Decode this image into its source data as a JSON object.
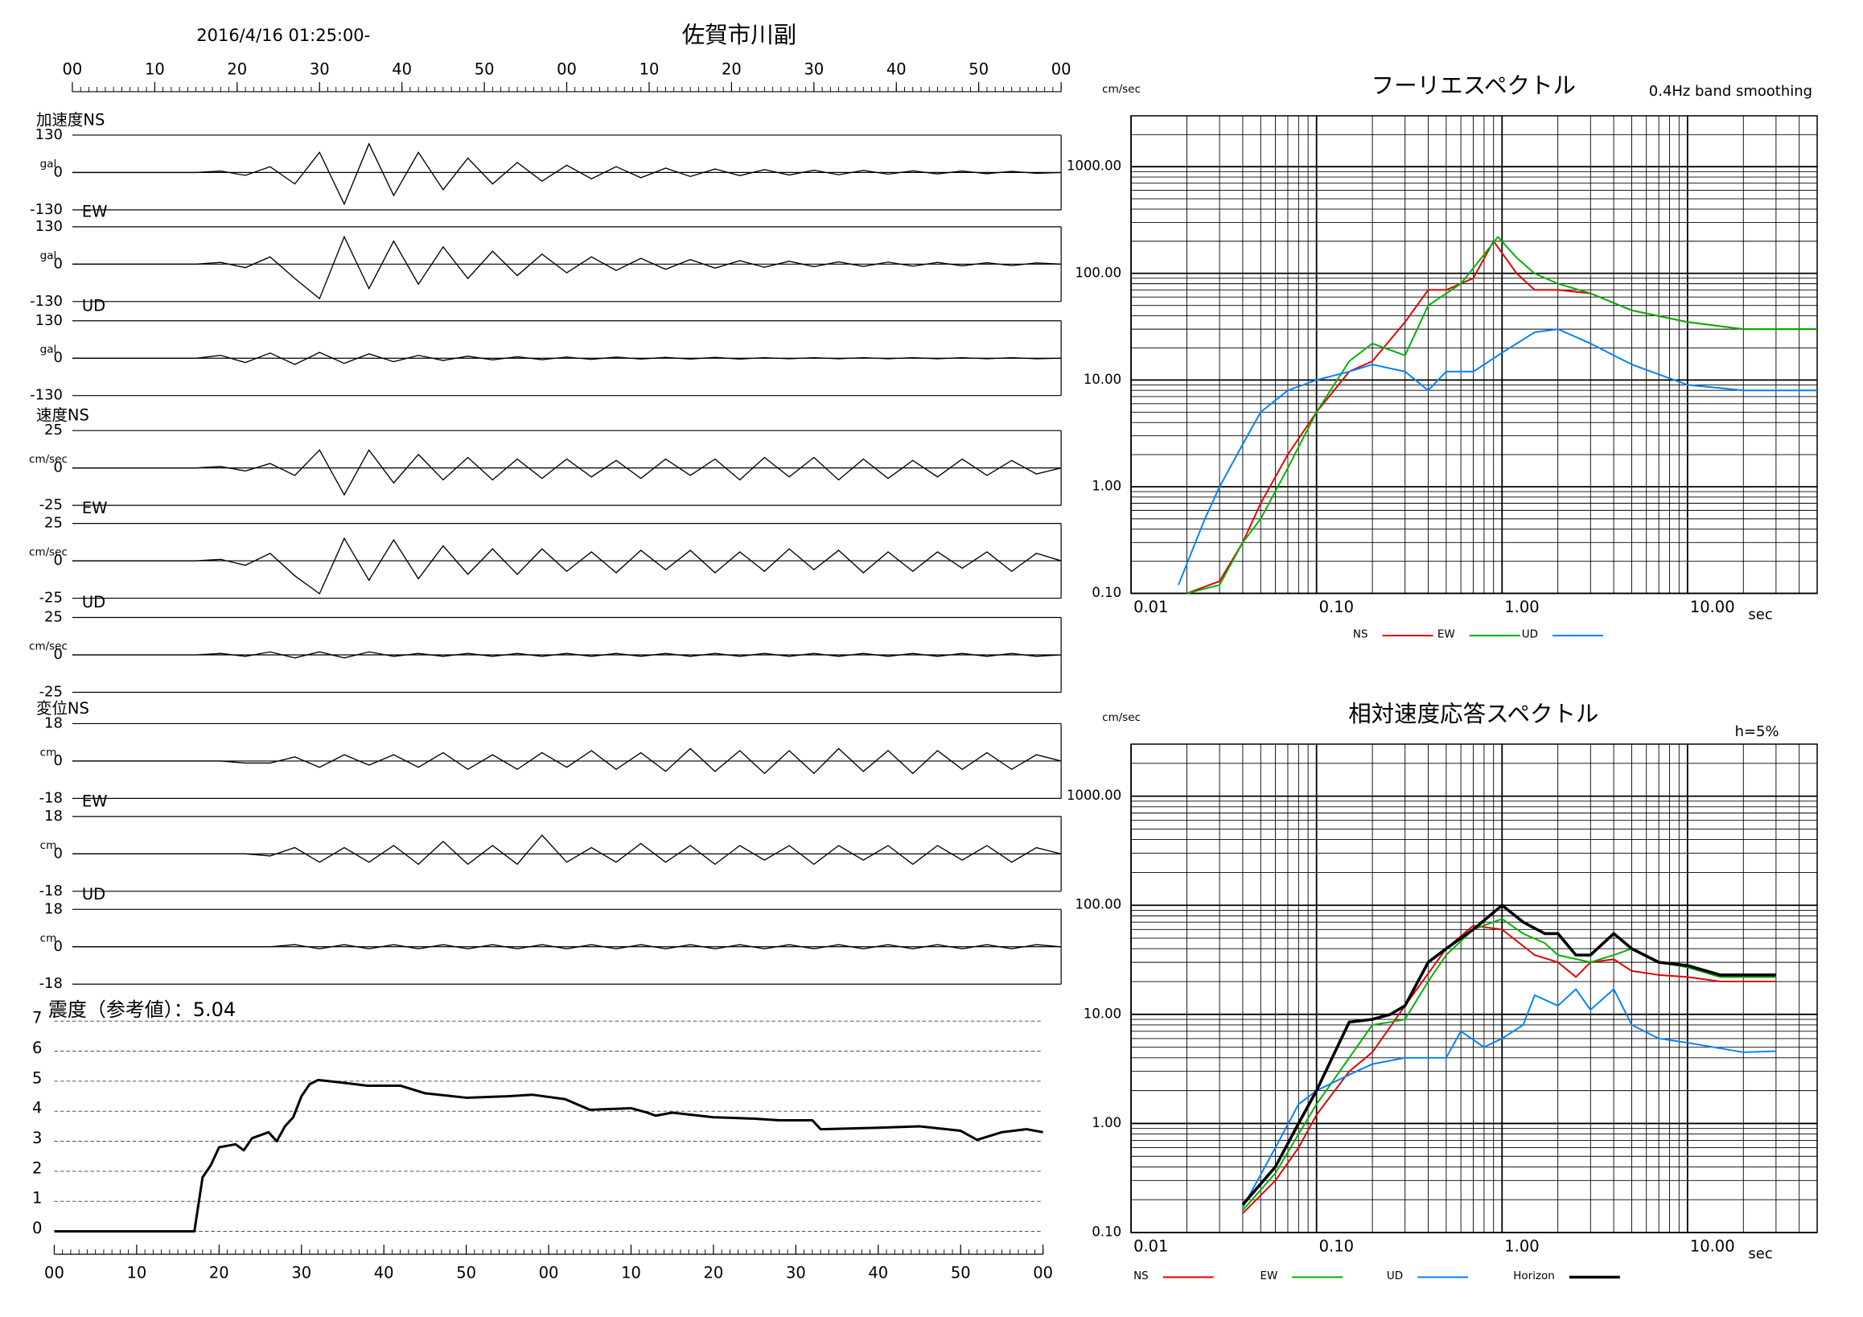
{
  "chart_data": [
    {
      "type": "waveform",
      "title": "佐賀市川副",
      "subtitle": "2016/4/16 01:25:00-",
      "x": [
        0,
        3,
        6,
        9,
        12,
        15,
        18,
        21,
        24,
        27,
        30,
        33,
        36,
        39,
        42,
        45,
        48,
        51,
        54,
        57,
        60,
        63,
        66,
        69,
        72,
        75,
        78,
        81,
        84,
        87,
        90,
        93,
        96,
        99,
        102,
        105,
        108,
        111,
        114,
        117,
        120
      ],
      "xlim": [
        0,
        120
      ],
      "xticks": [
        {
          "value": 0,
          "label": "00"
        },
        {
          "value": 10,
          "label": "10"
        },
        {
          "value": 20,
          "label": "20"
        },
        {
          "value": 30,
          "label": "30"
        },
        {
          "value": 40,
          "label": "40"
        },
        {
          "value": 50,
          "label": "50"
        },
        {
          "value": 60,
          "label": "00"
        },
        {
          "value": 70,
          "label": "10"
        },
        {
          "value": 80,
          "label": "20"
        },
        {
          "value": 90,
          "label": "30"
        },
        {
          "value": 100,
          "label": "40"
        },
        {
          "value": 110,
          "label": "50"
        },
        {
          "value": 120,
          "label": "00"
        }
      ],
      "color": "#000000",
      "series": [
        {
          "name": "加速度NS",
          "unit": "gal",
          "ylim": [
            -130,
            130
          ],
          "yticks": [
            -130,
            0,
            130
          ],
          "values": [
            0,
            0,
            0,
            0,
            0,
            0,
            5,
            -10,
            20,
            -40,
            70,
            -110,
            100,
            -80,
            70,
            -60,
            50,
            -40,
            35,
            -30,
            25,
            -22,
            20,
            -18,
            15,
            -14,
            12,
            -11,
            10,
            -9,
            8,
            -8,
            7,
            -6,
            6,
            -5,
            5,
            -4,
            4,
            -3,
            0
          ]
        },
        {
          "name": "EW",
          "unit": "gal",
          "ylim": [
            -130,
            130
          ],
          "yticks": [
            -130,
            0,
            130
          ],
          "values": [
            0,
            0,
            0,
            0,
            0,
            0,
            6,
            -12,
            25,
            -50,
            -120,
            95,
            -85,
            80,
            -70,
            60,
            -50,
            45,
            -40,
            35,
            -30,
            25,
            -22,
            20,
            -18,
            16,
            -14,
            12,
            -11,
            10,
            -9,
            8,
            -8,
            7,
            -7,
            6,
            -6,
            5,
            -5,
            4,
            0
          ]
        },
        {
          "name": "UD",
          "unit": "gal",
          "ylim": [
            -130,
            130
          ],
          "yticks": [
            -130,
            0,
            130
          ],
          "values": [
            0,
            0,
            0,
            0,
            0,
            0,
            10,
            -15,
            18,
            -22,
            20,
            -18,
            15,
            -12,
            10,
            -8,
            7,
            -6,
            5,
            -5,
            4,
            -4,
            4,
            -3,
            3,
            -3,
            3,
            -3,
            2,
            -2,
            2,
            -2,
            2,
            -2,
            2,
            -2,
            2,
            -2,
            2,
            -2,
            0
          ]
        },
        {
          "name": "速度NS",
          "unit": "cm/sec",
          "ylim": [
            -25,
            25
          ],
          "yticks": [
            -25,
            0,
            25
          ],
          "values": [
            0,
            0,
            0,
            0,
            0,
            0,
            1,
            -2,
            3,
            -5,
            12,
            -18,
            12,
            -10,
            9,
            -8,
            7,
            -8,
            6,
            -7,
            6,
            -6,
            5,
            -7,
            6,
            -5,
            6,
            -8,
            7,
            -6,
            7,
            -8,
            6,
            -7,
            5,
            -6,
            6,
            -5,
            5,
            -4,
            0
          ]
        },
        {
          "name": "EW",
          "unit": "cm/sec",
          "ylim": [
            -25,
            25
          ],
          "yticks": [
            -25,
            0,
            25
          ],
          "values": [
            0,
            0,
            0,
            0,
            0,
            0,
            1,
            -3,
            5,
            -10,
            -22,
            15,
            -13,
            14,
            -12,
            10,
            -9,
            8,
            -9,
            8,
            -7,
            6,
            -8,
            7,
            -6,
            7,
            -8,
            6,
            -7,
            8,
            -6,
            7,
            -8,
            6,
            -7,
            6,
            -5,
            6,
            -7,
            5,
            0
          ]
        },
        {
          "name": "UD",
          "unit": "cm/sec",
          "ylim": [
            -25,
            25
          ],
          "yticks": [
            -25,
            0,
            25
          ],
          "values": [
            0,
            0,
            0,
            0,
            0,
            0,
            1,
            -1,
            2,
            -2,
            2,
            -2,
            2,
            -1,
            1,
            -1,
            1,
            -1,
            1,
            -1,
            1,
            -1,
            1,
            -1,
            1,
            -1,
            1,
            -1,
            1,
            -1,
            1,
            -1,
            1,
            -1,
            1,
            -1,
            1,
            -1,
            1,
            -1,
            0
          ]
        },
        {
          "name": "変位NS",
          "unit": "cm",
          "ylim": [
            -18,
            18
          ],
          "yticks": [
            -18,
            0,
            18
          ],
          "values": [
            0,
            0,
            0,
            0,
            0,
            0,
            0,
            -1,
            -1,
            2,
            -3,
            3,
            -2,
            3,
            -3,
            4,
            -4,
            3,
            -4,
            4,
            -3,
            5,
            -4,
            4,
            -5,
            6,
            -5,
            5,
            -6,
            5,
            -6,
            6,
            -5,
            5,
            -6,
            5,
            -4,
            4,
            -4,
            3,
            0
          ]
        },
        {
          "name": "EW",
          "unit": "cm",
          "ylim": [
            -18,
            18
          ],
          "yticks": [
            -18,
            0,
            18
          ],
          "values": [
            0,
            0,
            0,
            0,
            0,
            0,
            0,
            0,
            -1,
            3,
            -4,
            3,
            -4,
            4,
            -5,
            6,
            -5,
            4,
            -5,
            9,
            -4,
            3,
            -4,
            5,
            -4,
            4,
            -5,
            4,
            -3,
            4,
            -5,
            4,
            -3,
            4,
            -5,
            4,
            -3,
            4,
            -4,
            3,
            0
          ]
        },
        {
          "name": "UD",
          "unit": "cm",
          "ylim": [
            -18,
            18
          ],
          "yticks": [
            -18,
            0,
            18
          ],
          "values": [
            0,
            0,
            0,
            0,
            0,
            0,
            0,
            0,
            0,
            1,
            -1,
            1,
            -1,
            1,
            -1,
            1,
            -1,
            1,
            -1,
            1,
            -1,
            1,
            -1,
            1,
            -1,
            1,
            -1,
            1,
            -1,
            1,
            -1,
            1,
            -1,
            1,
            -1,
            1,
            -1,
            1,
            -1,
            1,
            0
          ]
        }
      ]
    },
    {
      "type": "line",
      "title": "震度（参考値）：5.04",
      "grid": true,
      "color": "#000000",
      "x": [
        0,
        17,
        18,
        19,
        20,
        22,
        23,
        24,
        26,
        27,
        28,
        29,
        30,
        31,
        32,
        35,
        38,
        42,
        45,
        50,
        55,
        58,
        62,
        65,
        70,
        72,
        73,
        75,
        80,
        85,
        88,
        92,
        93,
        100,
        105,
        110,
        112,
        115,
        118,
        120
      ],
      "values": [
        0,
        0,
        1.8,
        2.2,
        2.8,
        2.9,
        2.7,
        3.1,
        3.3,
        3.0,
        3.5,
        3.8,
        4.5,
        4.9,
        5.04,
        4.95,
        4.85,
        4.85,
        4.6,
        4.45,
        4.5,
        4.55,
        4.4,
        4.05,
        4.1,
        3.95,
        3.85,
        3.95,
        3.8,
        3.75,
        3.7,
        3.7,
        3.4,
        3.45,
        3.5,
        3.35,
        3.05,
        3.3,
        3.4,
        3.3
      ],
      "xlim": [
        0,
        120
      ],
      "xticks": [
        {
          "value": 0,
          "label": "00"
        },
        {
          "value": 10,
          "label": "10"
        },
        {
          "value": 20,
          "label": "20"
        },
        {
          "value": 30,
          "label": "30"
        },
        {
          "value": 40,
          "label": "40"
        },
        {
          "value": 50,
          "label": "50"
        },
        {
          "value": 60,
          "label": "00"
        },
        {
          "value": 70,
          "label": "10"
        },
        {
          "value": 80,
          "label": "20"
        },
        {
          "value": 90,
          "label": "30"
        },
        {
          "value": 100,
          "label": "40"
        },
        {
          "value": 110,
          "label": "50"
        },
        {
          "value": 120,
          "label": "00"
        }
      ],
      "ylim": [
        0,
        7
      ],
      "yticks": [
        0,
        1,
        2,
        3,
        4,
        5,
        6,
        7
      ]
    },
    {
      "type": "line",
      "title": "フーリエスペクトル",
      "subtitle": "0.4Hz band smoothing",
      "ylabel": "cm/sec",
      "xlabel": "sec",
      "xscale": "log",
      "yscale": "log",
      "grid": true,
      "xlim": [
        0.01,
        50
      ],
      "ylim": [
        0.1,
        3000
      ],
      "xticks": [
        0.01,
        {
          "value": 0.1,
          "label": "0.10"
        },
        {
          "value": 1,
          "label": "1.00"
        },
        {
          "value": 10,
          "label": "10.00"
        }
      ],
      "yticks": [
        {
          "value": 0.1,
          "label": "0.10"
        },
        {
          "value": 1,
          "label": "1.00"
        },
        {
          "value": 10,
          "label": "10.00"
        },
        {
          "value": 100,
          "label": "100.00"
        },
        {
          "value": 1000,
          "label": "1000.00"
        }
      ],
      "series": [
        {
          "name": "NS",
          "color": "#e00000",
          "x": [
            0.02,
            0.03,
            0.04,
            0.05,
            0.07,
            0.1,
            0.15,
            0.2,
            0.3,
            0.4,
            0.5,
            0.7,
            0.9,
            1.2,
            1.5,
            2,
            3,
            5,
            10,
            20,
            40,
            50
          ],
          "values": [
            0.1,
            0.13,
            0.3,
            0.7,
            2,
            5,
            12,
            15,
            35,
            70,
            70,
            90,
            200,
            100,
            70,
            70,
            65,
            45,
            35,
            30,
            30,
            30
          ]
        },
        {
          "name": "EW",
          "color": "#00b000",
          "x": [
            0.02,
            0.03,
            0.04,
            0.05,
            0.07,
            0.1,
            0.15,
            0.2,
            0.3,
            0.4,
            0.6,
            0.8,
            0.95,
            1.2,
            1.5,
            2,
            3,
            5,
            10,
            20,
            50
          ],
          "values": [
            0.1,
            0.12,
            0.3,
            0.5,
            1.5,
            5,
            15,
            22,
            17,
            50,
            80,
            150,
            220,
            140,
            100,
            80,
            65,
            45,
            35,
            30,
            30
          ]
        },
        {
          "name": "UD",
          "color": "#0080ff",
          "x": [
            0.018,
            0.025,
            0.03,
            0.04,
            0.05,
            0.07,
            0.1,
            0.15,
            0.2,
            0.3,
            0.4,
            0.5,
            0.7,
            1,
            1.5,
            2,
            3,
            5,
            10,
            20,
            50
          ],
          "values": [
            0.12,
            0.5,
            1,
            2.5,
            5,
            8,
            10,
            12,
            14,
            12,
            8,
            12,
            12,
            18,
            28,
            30,
            22,
            14,
            9,
            8,
            8
          ]
        }
      ]
    },
    {
      "type": "line",
      "title": "相対速度応答スペクトル",
      "subtitle": "h=5%",
      "ylabel": "cm/sec",
      "xlabel": "sec",
      "xscale": "log",
      "yscale": "log",
      "grid": true,
      "xlim": [
        0.01,
        50
      ],
      "ylim": [
        0.1,
        3000
      ],
      "xticks": [
        0.01,
        {
          "value": 0.1,
          "label": "0.10"
        },
        {
          "value": 1,
          "label": "1.00"
        },
        {
          "value": 10,
          "label": "10.00"
        }
      ],
      "yticks": [
        {
          "value": 0.1,
          "label": "0.10"
        },
        {
          "value": 1,
          "label": "1.00"
        },
        {
          "value": 10,
          "label": "10.00"
        },
        {
          "value": 100,
          "label": "100.00"
        },
        {
          "value": 1000,
          "label": "1000.00"
        }
      ],
      "series": [
        {
          "name": "NS",
          "color": "#e00000",
          "x": [
            0.04,
            0.06,
            0.08,
            0.1,
            0.15,
            0.2,
            0.3,
            0.5,
            0.7,
            1,
            1.5,
            2,
            2.5,
            3,
            4,
            5,
            7,
            10,
            15,
            20,
            30
          ],
          "values": [
            0.15,
            0.3,
            0.6,
            1.2,
            3,
            4.5,
            12,
            40,
            65,
            60,
            35,
            30,
            22,
            30,
            32,
            25,
            23,
            22,
            20,
            20,
            20
          ]
        },
        {
          "name": "EW",
          "color": "#00b000",
          "x": [
            0.04,
            0.06,
            0.08,
            0.1,
            0.15,
            0.2,
            0.25,
            0.3,
            0.4,
            0.5,
            0.7,
            1,
            1.3,
            1.7,
            2,
            3,
            4,
            5,
            7,
            10,
            15,
            20,
            30
          ],
          "values": [
            0.16,
            0.35,
            0.8,
            1.5,
            4,
            8,
            8.5,
            9,
            20,
            35,
            60,
            75,
            55,
            45,
            35,
            30,
            35,
            40,
            30,
            27,
            22,
            22,
            22
          ]
        },
        {
          "name": "UD",
          "color": "#0080ff",
          "x": [
            0.04,
            0.06,
            0.08,
            0.1,
            0.15,
            0.2,
            0.3,
            0.5,
            0.6,
            0.8,
            1,
            1.3,
            1.5,
            2,
            2.5,
            3,
            4,
            5,
            7,
            10,
            20,
            30
          ],
          "values": [
            0.17,
            0.6,
            1.5,
            2,
            2.8,
            3.5,
            4,
            4,
            7,
            5,
            6,
            8,
            15,
            12,
            17,
            11,
            17,
            8,
            6,
            5.5,
            4.5,
            4.6
          ]
        },
        {
          "name": "Horizon",
          "color": "#000000",
          "x": [
            0.04,
            0.06,
            0.08,
            0.1,
            0.15,
            0.2,
            0.25,
            0.3,
            0.4,
            0.5,
            0.7,
            1,
            1.3,
            1.7,
            2,
            2.5,
            3,
            4,
            5,
            7,
            10,
            15,
            20,
            30
          ],
          "values": [
            0.18,
            0.4,
            1,
            2,
            8.5,
            9,
            10,
            12,
            30,
            40,
            60,
            100,
            70,
            55,
            55,
            35,
            35,
            55,
            40,
            30,
            28,
            23,
            23,
            23
          ]
        }
      ]
    }
  ]
}
